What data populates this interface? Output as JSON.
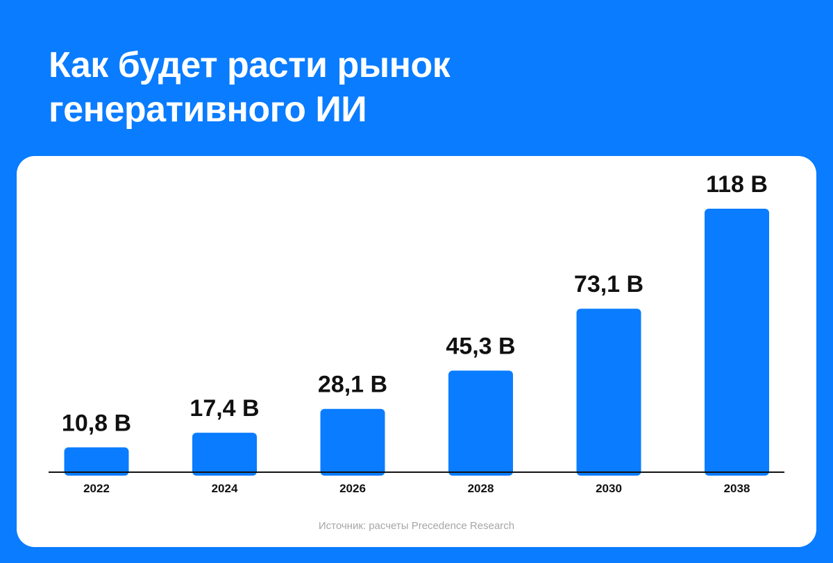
{
  "colors": {
    "background": "#0A7CFF",
    "card": "#FFFFFF",
    "bar": "#0A7CFF",
    "text": "#111111",
    "source_text": "#A6A6A6",
    "axis": "#111111"
  },
  "title_lines": [
    "Как будет расти рынок",
    "генеративного ИИ"
  ],
  "source": "Источник: расчеты Precedence Research",
  "chart_data": {
    "type": "bar",
    "title": "Как будет расти рынок генеративного ИИ",
    "categories": [
      "2022",
      "2024",
      "2026",
      "2028",
      "2030",
      "2038"
    ],
    "values": [
      10.8,
      17.4,
      28.1,
      45.3,
      73.1,
      118
    ],
    "data_labels": [
      "10,8 B",
      "17,4 B",
      "28,1 B",
      "45,3 B",
      "73,1 B",
      "118 B"
    ],
    "xlabel": "",
    "ylabel": "",
    "ylim": [
      0,
      118
    ],
    "grid": false,
    "legend": "none"
  }
}
